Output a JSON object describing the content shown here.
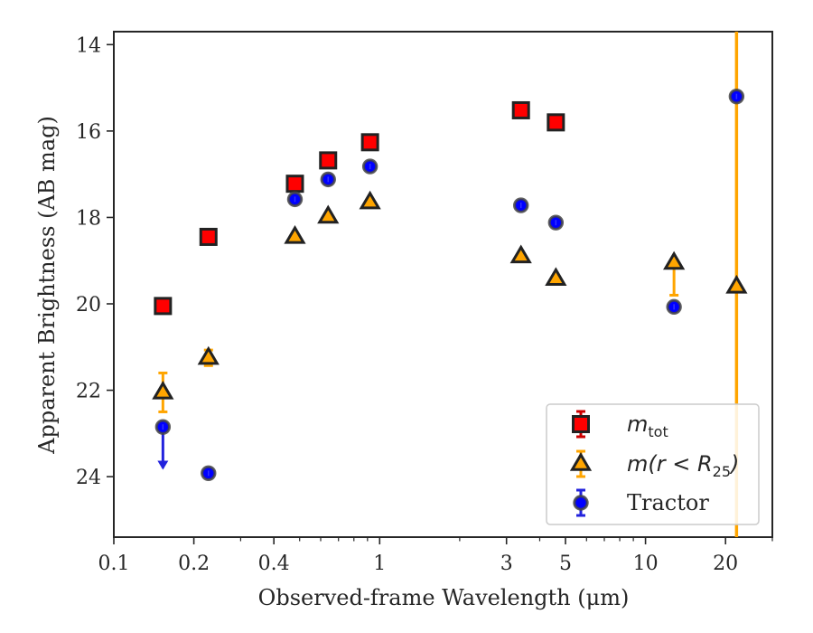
{
  "chart_data": {
    "type": "scatter",
    "title": "",
    "xlabel": "Observed-frame Wavelength (μm)",
    "ylabel": "Apparent Brightness (AB mag)",
    "xscale": "log",
    "xlim": [
      0.1,
      30
    ],
    "ylim": [
      25.4,
      13.7
    ],
    "y_inverted": true,
    "x_ticks": [
      {
        "value": 0.1,
        "label": "0.1"
      },
      {
        "value": 0.2,
        "label": "0.2"
      },
      {
        "value": 0.4,
        "label": "0.4"
      },
      {
        "value": 1,
        "label": "1"
      },
      {
        "value": 3,
        "label": "3"
      },
      {
        "value": 5,
        "label": "5"
      },
      {
        "value": 10,
        "label": "10"
      },
      {
        "value": 20,
        "label": "20"
      }
    ],
    "y_ticks": [
      {
        "value": 14,
        "label": "14"
      },
      {
        "value": 16,
        "label": "16"
      },
      {
        "value": 18,
        "label": "18"
      },
      {
        "value": 20,
        "label": "20"
      },
      {
        "value": 22,
        "label": "22"
      },
      {
        "value": 24,
        "label": "24"
      }
    ],
    "legend_position": "lower-right",
    "series": [
      {
        "name": "m_tot",
        "marker": "square",
        "color": "#ff0000",
        "edge_color": "#222222",
        "error_color": "#cc0000",
        "points": [
          {
            "x": 0.153,
            "y": 20.05
          },
          {
            "x": 0.227,
            "y": 18.45
          },
          {
            "x": 0.48,
            "y": 17.22
          },
          {
            "x": 0.64,
            "y": 16.68
          },
          {
            "x": 0.92,
            "y": 16.26
          },
          {
            "x": 3.4,
            "y": 15.52
          },
          {
            "x": 4.6,
            "y": 15.8
          }
        ]
      },
      {
        "name": "m(r<R25)",
        "marker": "triangle",
        "color": "#ffa500",
        "edge_color": "#222222",
        "error_color": "#ffa500",
        "points": [
          {
            "x": 0.153,
            "y": 22.05,
            "err": 0.45
          },
          {
            "x": 0.227,
            "y": 21.25,
            "err": 0.18
          },
          {
            "x": 0.48,
            "y": 18.45
          },
          {
            "x": 0.64,
            "y": 17.98
          },
          {
            "x": 0.92,
            "y": 17.65
          },
          {
            "x": 3.4,
            "y": 18.9
          },
          {
            "x": 4.6,
            "y": 19.42
          },
          {
            "x": 12.8,
            "y": 19.05,
            "err_low": 0.0,
            "err_high": 0.75
          },
          {
            "x": 22.0,
            "y": 19.6,
            "err_full": true
          }
        ]
      },
      {
        "name": "Tractor",
        "marker": "circle",
        "color": "#0000ff",
        "edge_color": "#444444",
        "error_color": "#2222dd",
        "points": [
          {
            "x": 0.153,
            "y": 22.85,
            "upper_limit": true
          },
          {
            "x": 0.227,
            "y": 23.92
          },
          {
            "x": 0.48,
            "y": 17.58
          },
          {
            "x": 0.64,
            "y": 17.12
          },
          {
            "x": 0.92,
            "y": 16.82
          },
          {
            "x": 3.4,
            "y": 17.72
          },
          {
            "x": 4.6,
            "y": 18.12
          },
          {
            "x": 12.8,
            "y": 20.07
          },
          {
            "x": 22.0,
            "y": 15.2
          }
        ]
      }
    ],
    "legend": [
      {
        "series": "m_tot",
        "main": "m",
        "sub": "tot",
        "math": true
      },
      {
        "series": "m(r<R25)",
        "main": "m(r < R",
        "sub": "25",
        "tail": ")",
        "math": true
      },
      {
        "series": "Tractor",
        "main": "Tractor",
        "math": false
      }
    ]
  }
}
